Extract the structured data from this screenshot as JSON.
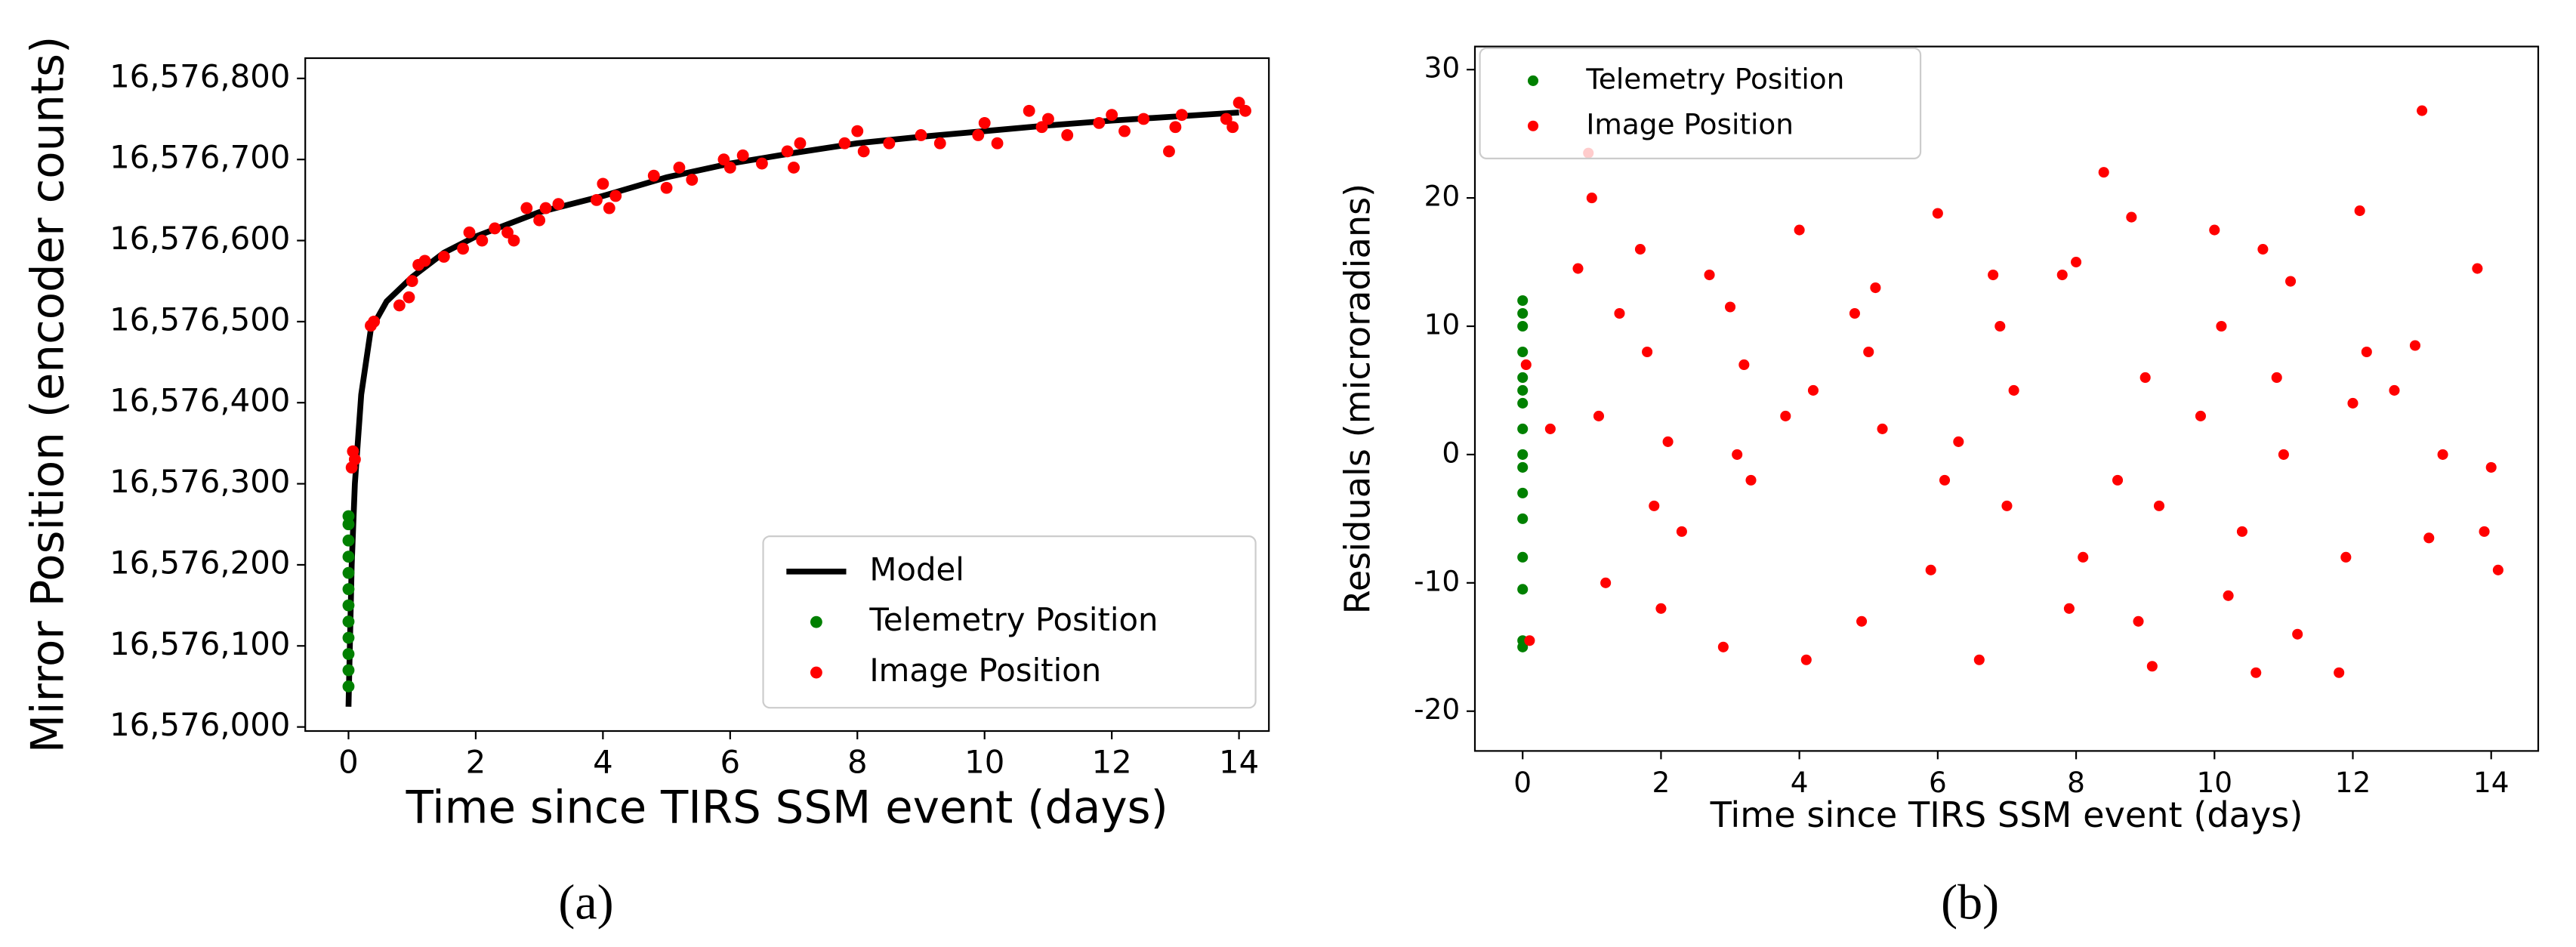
{
  "chart_data": [
    {
      "type": "scatter",
      "caption": "(a)",
      "xlabel": "Time since TIRS SSM event (days)",
      "ylabel": "Mirror Position (encoder counts)",
      "xlim": [
        -0.68,
        14.47
      ],
      "ylim": [
        16575995,
        16576825
      ],
      "xticks": [
        0,
        2,
        4,
        6,
        8,
        10,
        12,
        14
      ],
      "yticks": [
        {
          "value": 16576000,
          "label": "16,576,000"
        },
        {
          "value": 16576100,
          "label": "16,576,100"
        },
        {
          "value": 16576200,
          "label": "16,576,200"
        },
        {
          "value": 16576300,
          "label": "16,576,300"
        },
        {
          "value": 16576400,
          "label": "16,576,400"
        },
        {
          "value": 16576500,
          "label": "16,576,500"
        },
        {
          "value": 16576600,
          "label": "16,576,600"
        },
        {
          "value": 16576700,
          "label": "16,576,700"
        },
        {
          "value": 16576800,
          "label": "16,576,800"
        }
      ],
      "legend": "lower right",
      "series": [
        {
          "name": "Model",
          "type": "line",
          "color": "#000000",
          "x": [
            0,
            0.05,
            0.1,
            0.2,
            0.35,
            0.6,
            1,
            1.5,
            2,
            3,
            4,
            5,
            6,
            7,
            8,
            9,
            10,
            11,
            12,
            13,
            14
          ],
          "values": [
            16576025,
            16576200,
            16576300,
            16576410,
            16576490,
            16576525,
            16576555,
            16576585,
            16576605,
            16576635,
            16576655,
            16576678,
            16576695,
            16576708,
            16576720,
            16576728,
            16576735,
            16576742,
            16576748,
            16576753,
            16576758
          ]
        },
        {
          "name": "Telemetry Position",
          "color": "#008000",
          "x": [
            0,
            0,
            0,
            0,
            0,
            0,
            0,
            0,
            0,
            0,
            0,
            0
          ],
          "values": [
            16576050,
            16576070,
            16576090,
            16576110,
            16576130,
            16576150,
            16576170,
            16576190,
            16576210,
            16576230,
            16576250,
            16576260
          ]
        },
        {
          "name": "Image Position",
          "color": "#ff0000",
          "x": [
            0.05,
            0.07,
            0.1,
            0.35,
            0.4,
            0.8,
            1.0,
            1.1,
            1.2,
            0.95,
            1.5,
            1.8,
            1.9,
            2.1,
            2.3,
            2.5,
            2.8,
            3.0,
            3.1,
            3.3,
            2.6,
            3.9,
            4.0,
            4.1,
            4.2,
            4.8,
            5.0,
            5.2,
            5.4,
            5.9,
            6.0,
            6.2,
            6.5,
            6.9,
            7.0,
            7.1,
            7.8,
            8.0,
            8.1,
            8.5,
            9.0,
            9.3,
            9.9,
            10.0,
            10.2,
            10.7,
            10.9,
            11.0,
            11.3,
            11.8,
            12.0,
            12.2,
            12.5,
            13.0,
            13.1,
            13.8,
            14.0,
            13.9,
            14.1,
            12.9
          ],
          "values": [
            16576320,
            16576340,
            16576330,
            16576495,
            16576500,
            16576520,
            16576550,
            16576570,
            16576575,
            16576530,
            16576580,
            16576590,
            16576610,
            16576600,
            16576615,
            16576610,
            16576640,
            16576625,
            16576640,
            16576645,
            16576600,
            16576650,
            16576670,
            16576640,
            16576655,
            16576680,
            16576665,
            16576690,
            16576675,
            16576700,
            16576690,
            16576705,
            16576695,
            16576710,
            16576690,
            16576720,
            16576720,
            16576735,
            16576710,
            16576720,
            16576730,
            16576720,
            16576730,
            16576745,
            16576720,
            16576760,
            16576740,
            16576750,
            16576730,
            16576745,
            16576755,
            16576735,
            16576750,
            16576740,
            16576755,
            16576750,
            16576770,
            16576740,
            16576760,
            16576710
          ]
        }
      ]
    },
    {
      "type": "scatter",
      "caption": "(b)",
      "xlabel": "Time since TIRS SSM event (days)",
      "ylabel": "Residuals (microradians)",
      "xlim": [
        -0.69,
        14.68
      ],
      "ylim": [
        -23.1,
        31.8
      ],
      "xticks": [
        0,
        2,
        4,
        6,
        8,
        10,
        12,
        14
      ],
      "yticks": [
        -20,
        -10,
        0,
        10,
        20,
        30
      ],
      "legend": "upper left",
      "series": [
        {
          "name": "Telemetry Position",
          "color": "#008000",
          "x": [
            0,
            0,
            0,
            0,
            0,
            0,
            0,
            0,
            0,
            0,
            0,
            0,
            0,
            0,
            0,
            0
          ],
          "values": [
            -15,
            -14.5,
            -10.5,
            -8,
            -5,
            -3,
            -1,
            0,
            2,
            4,
            5,
            6,
            8,
            10,
            11,
            12
          ]
        },
        {
          "name": "Image Position",
          "color": "#ff0000",
          "x": [
            0.05,
            0.1,
            0.4,
            0.8,
            0.95,
            1.0,
            1.1,
            1.2,
            1.4,
            1.7,
            1.8,
            1.9,
            2.0,
            2.1,
            2.3,
            2.7,
            2.9,
            3.0,
            3.1,
            3.2,
            3.3,
            3.8,
            4.0,
            4.1,
            4.2,
            4.8,
            4.9,
            5.0,
            5.1,
            5.2,
            5.9,
            6.0,
            6.1,
            6.3,
            6.6,
            6.8,
            6.9,
            7.0,
            7.1,
            7.8,
            7.9,
            8.0,
            8.1,
            8.4,
            8.6,
            8.8,
            8.9,
            9.0,
            9.1,
            9.2,
            9.8,
            10.0,
            10.1,
            10.2,
            10.4,
            10.6,
            10.7,
            10.9,
            11.0,
            11.1,
            11.2,
            11.8,
            11.9,
            12.0,
            12.1,
            12.2,
            12.6,
            12.9,
            13.0,
            13.1,
            13.3,
            13.8,
            13.9,
            14.0,
            14.1
          ],
          "values": [
            7,
            -14.5,
            2,
            14.5,
            23.5,
            20,
            3,
            -10,
            11,
            16,
            8,
            -4,
            -12,
            1,
            -6,
            14,
            -15,
            11.5,
            0,
            7,
            -2,
            3,
            17.5,
            -16,
            5,
            11,
            -13,
            8,
            13,
            2,
            -9,
            18.8,
            -2,
            1,
            -16,
            14,
            10,
            -4,
            5,
            14,
            -12,
            15,
            -8,
            22,
            -2,
            18.5,
            -13,
            6,
            -16.5,
            -4,
            3,
            17.5,
            10,
            -11,
            -6,
            -17,
            16,
            6,
            0,
            13.5,
            -14,
            -17,
            -8,
            4,
            19,
            8,
            5,
            8.5,
            26.8,
            -6.5,
            0,
            14.5,
            -6,
            -1,
            -9
          ]
        }
      ]
    }
  ]
}
